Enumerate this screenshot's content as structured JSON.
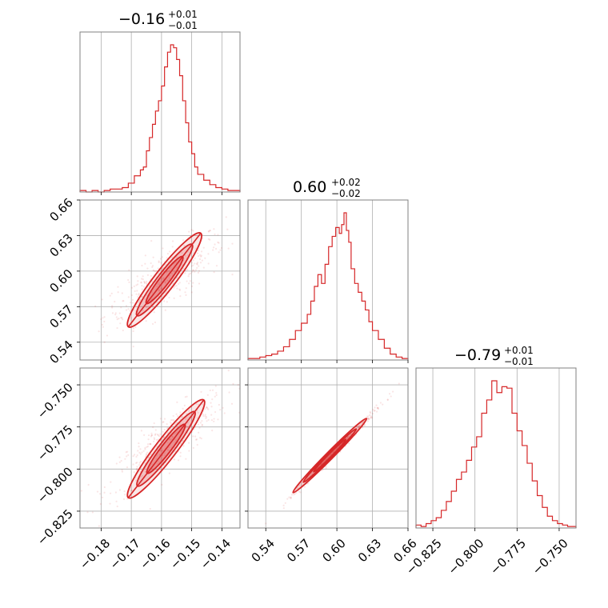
{
  "chart_data": {
    "type": "corner",
    "color": "#d62728",
    "grid": true,
    "parameters": [
      {
        "key": "p1",
        "title": {
          "median": "−0.16",
          "plus": "+0.01",
          "minus": "−0.01"
        },
        "range": [
          -0.187,
          -0.134
        ],
        "ticks": [
          -0.18,
          -0.17,
          -0.16,
          -0.15,
          -0.14
        ],
        "tick_labels": [
          "−0.18",
          "−0.17",
          "−0.16",
          "−0.15",
          "−0.14"
        ],
        "hist": [
          [
            -0.187,
            0.01
          ],
          [
            -0.185,
            0.0
          ],
          [
            -0.183,
            0.01
          ],
          [
            -0.181,
            0.0
          ],
          [
            -0.179,
            0.01
          ],
          [
            -0.177,
            0.02
          ],
          [
            -0.175,
            0.02
          ],
          [
            -0.173,
            0.03
          ],
          [
            -0.171,
            0.06
          ],
          [
            -0.169,
            0.11
          ],
          [
            -0.167,
            0.15
          ],
          [
            -0.166,
            0.17
          ],
          [
            -0.165,
            0.28
          ],
          [
            -0.164,
            0.37
          ],
          [
            -0.163,
            0.46
          ],
          [
            -0.162,
            0.55
          ],
          [
            -0.161,
            0.62
          ],
          [
            -0.16,
            0.72
          ],
          [
            -0.159,
            0.85
          ],
          [
            -0.158,
            0.95
          ],
          [
            -0.157,
            1.0
          ],
          [
            -0.156,
            0.98
          ],
          [
            -0.155,
            0.9
          ],
          [
            -0.154,
            0.79
          ],
          [
            -0.153,
            0.62
          ],
          [
            -0.152,
            0.47
          ],
          [
            -0.151,
            0.34
          ],
          [
            -0.15,
            0.26
          ],
          [
            -0.149,
            0.17
          ],
          [
            -0.148,
            0.12
          ],
          [
            -0.146,
            0.08
          ],
          [
            -0.144,
            0.05
          ],
          [
            -0.142,
            0.03
          ],
          [
            -0.14,
            0.02
          ],
          [
            -0.138,
            0.01
          ],
          [
            -0.136,
            0.01
          ]
        ]
      },
      {
        "key": "p2",
        "title": {
          "median": "0.60",
          "plus": "+0.02",
          "minus": "−0.02"
        },
        "range": [
          0.525,
          0.66
        ],
        "ticks": [
          0.54,
          0.57,
          0.6,
          0.63,
          0.66
        ],
        "tick_labels": [
          "0.54",
          "0.57",
          "0.60",
          "0.63",
          "0.66"
        ],
        "hist": [
          [
            0.525,
            0.01
          ],
          [
            0.53,
            0.01
          ],
          [
            0.535,
            0.02
          ],
          [
            0.54,
            0.03
          ],
          [
            0.545,
            0.04
          ],
          [
            0.55,
            0.06
          ],
          [
            0.555,
            0.09
          ],
          [
            0.56,
            0.14
          ],
          [
            0.565,
            0.2
          ],
          [
            0.57,
            0.25
          ],
          [
            0.575,
            0.31
          ],
          [
            0.578,
            0.4
          ],
          [
            0.581,
            0.5
          ],
          [
            0.584,
            0.58
          ],
          [
            0.587,
            0.52
          ],
          [
            0.59,
            0.65
          ],
          [
            0.593,
            0.77
          ],
          [
            0.596,
            0.84
          ],
          [
            0.599,
            0.9
          ],
          [
            0.602,
            0.86
          ],
          [
            0.604,
            0.92
          ],
          [
            0.606,
            1.0
          ],
          [
            0.608,
            0.88
          ],
          [
            0.61,
            0.8
          ],
          [
            0.612,
            0.62
          ],
          [
            0.615,
            0.52
          ],
          [
            0.618,
            0.46
          ],
          [
            0.621,
            0.4
          ],
          [
            0.624,
            0.34
          ],
          [
            0.627,
            0.26
          ],
          [
            0.63,
            0.2
          ],
          [
            0.635,
            0.14
          ],
          [
            0.64,
            0.08
          ],
          [
            0.645,
            0.04
          ],
          [
            0.65,
            0.02
          ],
          [
            0.655,
            0.01
          ]
        ]
      },
      {
        "key": "p3",
        "title": {
          "median": "−0.79",
          "plus": "+0.01",
          "minus": "−0.01"
        },
        "range": [
          -0.835,
          -0.74
        ],
        "ticks": [
          -0.825,
          -0.8,
          -0.775,
          -0.75
        ],
        "tick_labels": [
          "−0.825",
          "−0.800",
          "−0.775",
          "−0.750"
        ],
        "hist": [
          [
            -0.835,
            0.02
          ],
          [
            -0.832,
            0.01
          ],
          [
            -0.829,
            0.03
          ],
          [
            -0.826,
            0.05
          ],
          [
            -0.823,
            0.07
          ],
          [
            -0.82,
            0.12
          ],
          [
            -0.817,
            0.18
          ],
          [
            -0.814,
            0.25
          ],
          [
            -0.811,
            0.33
          ],
          [
            -0.808,
            0.38
          ],
          [
            -0.805,
            0.46
          ],
          [
            -0.802,
            0.55
          ],
          [
            -0.799,
            0.62
          ],
          [
            -0.796,
            0.78
          ],
          [
            -0.793,
            0.87
          ],
          [
            -0.79,
            1.0
          ],
          [
            -0.787,
            0.92
          ],
          [
            -0.784,
            0.96
          ],
          [
            -0.781,
            0.95
          ],
          [
            -0.778,
            0.78
          ],
          [
            -0.775,
            0.66
          ],
          [
            -0.772,
            0.56
          ],
          [
            -0.769,
            0.44
          ],
          [
            -0.766,
            0.32
          ],
          [
            -0.763,
            0.22
          ],
          [
            -0.76,
            0.14
          ],
          [
            -0.757,
            0.08
          ],
          [
            -0.754,
            0.05
          ],
          [
            -0.751,
            0.03
          ],
          [
            -0.748,
            0.02
          ],
          [
            -0.745,
            0.01
          ]
        ]
      }
    ],
    "pairs": [
      {
        "x": "p1",
        "y": "p2",
        "center": [
          -0.159,
          0.593
        ],
        "spread": 0.01,
        "slope": 1.55,
        "width": 0.012,
        "line_start": [
          -0.171,
          0.553
        ],
        "line_end": [
          -0.147,
          0.632
        ]
      },
      {
        "x": "p1",
        "y": "p3",
        "center": [
          -0.158,
          -0.784
        ],
        "spread": 0.01,
        "slope": 1.3,
        "width": 0.008,
        "line_start": [
          -0.171,
          -0.817
        ],
        "line_end": [
          -0.146,
          -0.759
        ]
      },
      {
        "x": "p2",
        "y": "p3",
        "center": [
          0.6,
          -0.789
        ],
        "spread": 0.02,
        "slope": 0.73,
        "width": 0.0012,
        "line_start": [
          0.563,
          -0.814
        ],
        "line_end": [
          0.625,
          -0.77
        ]
      }
    ]
  }
}
